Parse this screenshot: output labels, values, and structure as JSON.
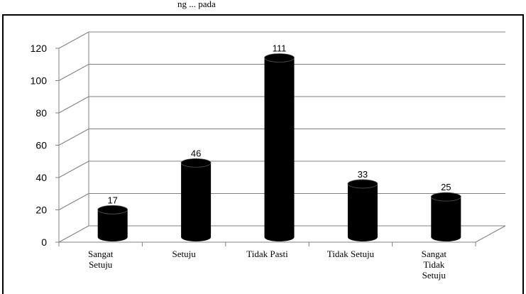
{
  "header_fragment": "ng ... pada",
  "chart_data": {
    "type": "bar",
    "title": "",
    "xlabel": "",
    "ylabel": "",
    "categories": [
      "Sangat Setuju",
      "Setuju",
      "Tidak Pasti",
      "Tidak Setuju",
      "Sangat Tidak Setuju"
    ],
    "category_lines": [
      [
        "Sangat",
        "Setuju"
      ],
      [
        "Setuju"
      ],
      [
        "Tidak Pasti"
      ],
      [
        "Tidak Setuju"
      ],
      [
        "Sangat",
        "Tidak",
        "Setuju"
      ]
    ],
    "values": [
      17,
      46,
      111,
      33,
      25
    ],
    "data_labels": [
      "17",
      "46",
      "111",
      "33",
      "25"
    ],
    "ylim": [
      0,
      120
    ],
    "yticks": [
      0,
      20,
      40,
      60,
      80,
      100,
      120
    ],
    "grid": true,
    "legend": "none",
    "bar_color": "#000000"
  }
}
